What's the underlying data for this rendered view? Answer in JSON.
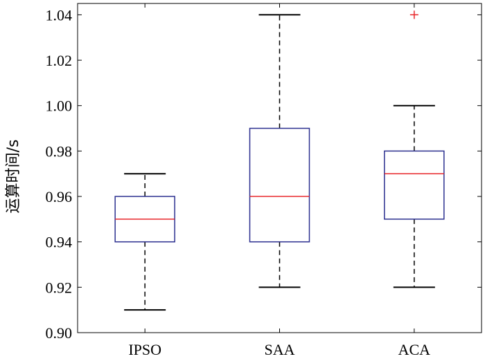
{
  "chart_data": {
    "type": "box",
    "title": "",
    "xlabel": "",
    "ylabel": "运算时间/s",
    "ylim": [
      0.9,
      1.045
    ],
    "yticks": [
      0.9,
      0.92,
      0.94,
      0.96,
      0.98,
      1.0,
      1.02,
      1.04
    ],
    "ytick_labels": [
      "0.90",
      "0.92",
      "0.94",
      "0.96",
      "0.98",
      "1.00",
      "1.02",
      "1.04"
    ],
    "categories": [
      "IPSO",
      "SAA",
      "ACA"
    ],
    "boxes": [
      {
        "category": "IPSO",
        "whisker_low": 0.91,
        "q1": 0.94,
        "median": 0.95,
        "q3": 0.96,
        "whisker_high": 0.97,
        "outliers": []
      },
      {
        "category": "SAA",
        "whisker_low": 0.92,
        "q1": 0.94,
        "median": 0.96,
        "q3": 0.99,
        "whisker_high": 1.04,
        "outliers": []
      },
      {
        "category": "ACA",
        "whisker_low": 0.92,
        "q1": 0.95,
        "median": 0.97,
        "q3": 0.98,
        "whisker_high": 1.0,
        "outliers": [
          1.04
        ]
      }
    ],
    "colors": {
      "box": "#2b2f8f",
      "median": "#e8262a",
      "whisker": "#000000",
      "outlier": "#e8262a",
      "axis": "#000000"
    },
    "grid": false
  }
}
